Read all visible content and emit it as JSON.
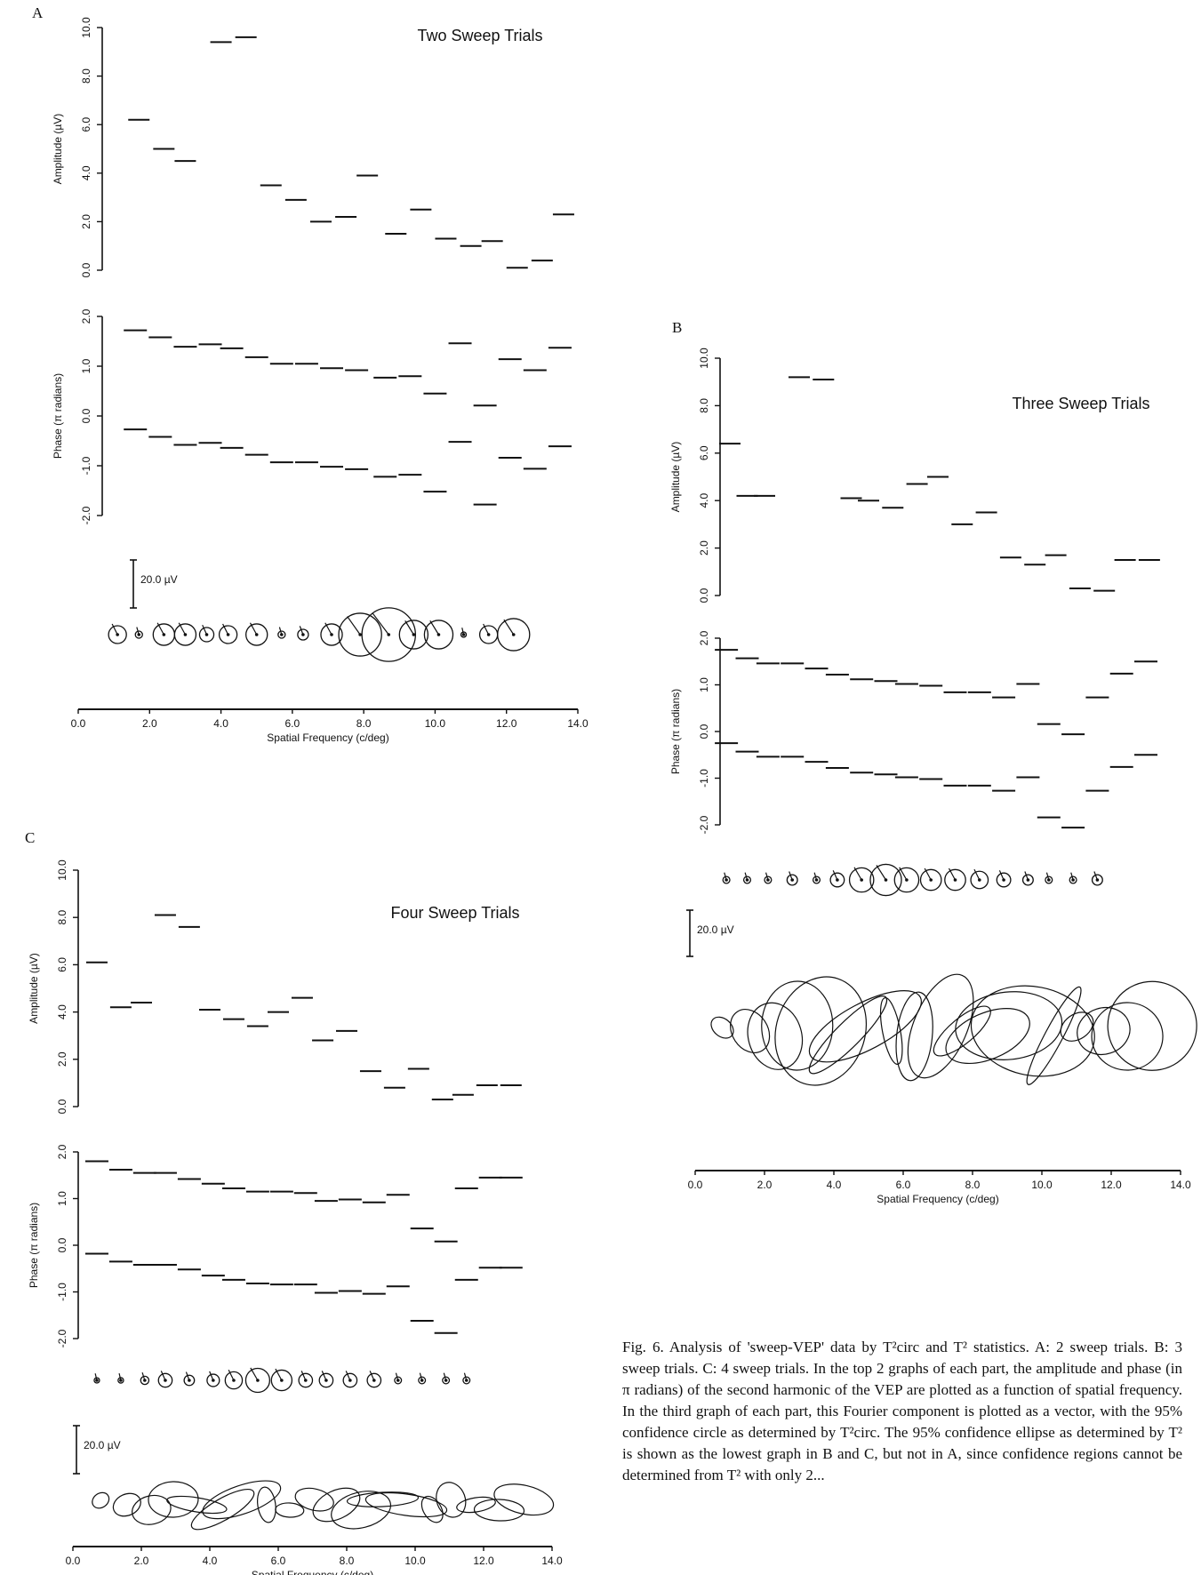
{
  "panels": [
    {
      "id": "A",
      "letter": "A",
      "title": "Two Sweep Trials",
      "amplitude_label": "Amplitude (µV)",
      "amplitude_ticks": [
        "0.0",
        "2.0",
        "4.0",
        "6.0",
        "8.0",
        "10.0"
      ],
      "phase_label": "Phase (π radians)",
      "phase_ticks": [
        "-2.0",
        "-1.0",
        "0.0",
        "1.0",
        "2.0"
      ],
      "scale_bar_label": "20.0 µV",
      "x_ticks": [
        "0.0",
        "2.0",
        "4.0",
        "6.0",
        "8.0",
        "10.0",
        "12.0",
        "14.0"
      ],
      "x_label": "Spatial Frequency (c/deg)"
    },
    {
      "id": "B",
      "letter": "B",
      "title": "Three Sweep Trials",
      "amplitude_label": "Amplitude (µV)",
      "amplitude_ticks": [
        "0.0",
        "2.0",
        "4.0",
        "6.0",
        "8.0",
        "10.0"
      ],
      "phase_label": "Phase (π radians)",
      "phase_ticks": [
        "-2.0",
        "-1.0",
        "0.0",
        "1.0",
        "2.0"
      ],
      "scale_bar_label": "20.0 µV",
      "x_ticks": [
        "0.0",
        "2.0",
        "4.0",
        "6.0",
        "8.0",
        "10.0",
        "12.0",
        "14.0"
      ],
      "x_label": "Spatial Frequency (c/deg)"
    },
    {
      "id": "C",
      "letter": "C",
      "title": "Four Sweep Trials",
      "amplitude_label": "Amplitude (µV)",
      "amplitude_ticks": [
        "0.0",
        "2.0",
        "4.0",
        "6.0",
        "8.0",
        "10.0"
      ],
      "phase_label": "Phase (π radians)",
      "phase_ticks": [
        "-2.0",
        "-1.0",
        "0.0",
        "1.0",
        "2.0"
      ],
      "scale_bar_label": "20.0 µV",
      "x_ticks": [
        "0.0",
        "2.0",
        "4.0",
        "6.0",
        "8.0",
        "10.0",
        "12.0",
        "14.0"
      ],
      "x_label": "Spatial Frequency (c/deg)"
    }
  ],
  "caption": "Fig. 6. Analysis of 'sweep-VEP' data by T²circ and T² statistics. A: 2 sweep trials. B: 3 sweep trials. C: 4 sweep trials. In the top 2 graphs of each part, the amplitude and phase (in π radians) of the second harmonic of the VEP are plotted as a function of spatial frequency. In the third graph of each part, this Fourier component is plotted as a vector, with the 95% confidence circle as determined by T²circ. The 95% confidence ellipse as determined by T² is shown as the lowest graph in B and C, but not in A, since confidence regions cannot be determined from T² with only 2...",
  "chart_data": [
    {
      "panel": "A",
      "type": "line",
      "title": "Two Sweep Trials",
      "x_label": "Spatial Frequency (c/deg)",
      "xlim": [
        0,
        14
      ],
      "amplitude": {
        "ylabel": "Amplitude (µV)",
        "ylim": [
          0,
          10
        ],
        "x": [
          1.7,
          2.4,
          3.0,
          4.0,
          4.7,
          5.4,
          6.1,
          6.8,
          7.5,
          8.1,
          8.9,
          9.6,
          10.3,
          11.0,
          11.6,
          12.3,
          13.0,
          13.6
        ],
        "y": [
          6.2,
          5.0,
          4.5,
          9.4,
          9.6,
          3.5,
          2.9,
          2.0,
          2.2,
          3.9,
          1.5,
          2.5,
          1.3,
          1.0,
          1.2,
          0.1,
          0.4,
          2.3
        ]
      },
      "phase": {
        "ylabel": "Phase (π radians)",
        "ylim": [
          -2,
          2
        ],
        "upper": {
          "x": [
            1.6,
            2.3,
            3.0,
            3.7,
            4.3,
            5.0,
            5.7,
            6.4,
            7.1,
            7.8,
            8.6,
            9.3,
            10.0,
            10.7,
            11.4,
            12.1,
            12.8,
            13.5
          ],
          "y": [
            1.72,
            1.58,
            1.39,
            1.44,
            1.36,
            1.18,
            1.05,
            1.05,
            0.96,
            0.92,
            0.77,
            0.8,
            0.45,
            1.46,
            0.21,
            1.14,
            0.92,
            1.37
          ]
        },
        "lower": {
          "x": [
            1.6,
            2.3,
            3.0,
            3.7,
            4.3,
            5.0,
            5.7,
            6.4,
            7.1,
            7.8,
            8.6,
            9.3,
            10.0,
            10.7,
            11.4,
            12.1,
            12.8,
            13.5
          ],
          "y": [
            -0.27,
            -0.42,
            -0.58,
            -0.54,
            -0.64,
            -0.78,
            -0.93,
            -0.93,
            -1.02,
            -1.07,
            -1.22,
            -1.18,
            -1.52,
            -0.52,
            -1.78,
            -0.84,
            -1.06,
            -0.61
          ]
        }
      },
      "confidence_circles": {
        "x": [
          1.1,
          1.7,
          2.4,
          3.0,
          3.6,
          4.2,
          5.0,
          5.7,
          6.3,
          7.1,
          7.9,
          8.7,
          9.4,
          10.1,
          10.8,
          11.5,
          12.2
        ],
        "radius": [
          0.25,
          0.1,
          0.3,
          0.3,
          0.2,
          0.25,
          0.3,
          0.1,
          0.15,
          0.3,
          0.6,
          0.75,
          0.4,
          0.4,
          0.05,
          0.25,
          0.45
        ]
      }
    },
    {
      "panel": "B",
      "type": "line",
      "title": "Three Sweep Trials",
      "x_label": "Spatial Frequency (c/deg)",
      "xlim": [
        0,
        14
      ],
      "amplitude": {
        "ylabel": "Amplitude (µV)",
        "ylim": [
          0,
          10
        ],
        "x": [
          1.0,
          1.5,
          2.0,
          3.0,
          3.7,
          4.5,
          5.0,
          5.7,
          6.4,
          7.0,
          7.7,
          8.4,
          9.1,
          9.8,
          10.4,
          11.1,
          11.8,
          12.4,
          13.1
        ],
        "y": [
          6.4,
          4.2,
          4.2,
          9.2,
          9.1,
          4.1,
          4.0,
          3.7,
          4.7,
          5.0,
          3.0,
          3.5,
          1.6,
          1.3,
          1.7,
          0.3,
          0.2,
          1.5,
          1.5
        ]
      },
      "phase": {
        "ylabel": "Phase (π radians)",
        "ylim": [
          -2,
          2
        ],
        "upper": {
          "x": [
            0.9,
            1.5,
            2.1,
            2.8,
            3.5,
            4.1,
            4.8,
            5.5,
            6.1,
            6.8,
            7.5,
            8.2,
            8.9,
            9.6,
            10.2,
            10.9,
            11.6,
            12.3,
            13.0
          ],
          "y": [
            1.75,
            1.57,
            1.46,
            1.46,
            1.35,
            1.22,
            1.12,
            1.08,
            1.02,
            0.98,
            0.84,
            0.84,
            0.73,
            1.02,
            0.16,
            -0.06,
            0.73,
            1.24,
            1.5
          ]
        },
        "lower": {
          "x": [
            0.9,
            1.5,
            2.1,
            2.8,
            3.5,
            4.1,
            4.8,
            5.5,
            6.1,
            6.8,
            7.5,
            8.2,
            8.9,
            9.6,
            10.2,
            10.9,
            11.6,
            12.3,
            13.0
          ],
          "y": [
            -0.25,
            -0.43,
            -0.54,
            -0.54,
            -0.65,
            -0.78,
            -0.88,
            -0.92,
            -0.98,
            -1.02,
            -1.16,
            -1.16,
            -1.27,
            -0.98,
            -1.84,
            -2.06,
            -1.27,
            -0.76,
            -0.5
          ]
        }
      },
      "confidence_circles": {
        "x": [
          0.9,
          1.5,
          2.1,
          2.8,
          3.5,
          4.1,
          4.8,
          5.5,
          6.1,
          6.8,
          7.5,
          8.2,
          8.9,
          9.6,
          10.2,
          10.9,
          11.6
        ],
        "radius": [
          0.1,
          0.1,
          0.1,
          0.15,
          0.1,
          0.2,
          0.35,
          0.45,
          0.35,
          0.3,
          0.3,
          0.25,
          0.2,
          0.15,
          0.1,
          0.1,
          0.15
        ]
      },
      "confidence_ellipses": {
        "count": 19
      }
    },
    {
      "panel": "C",
      "type": "line",
      "title": "Four Sweep Trials",
      "x_label": "Spatial Frequency (c/deg)",
      "xlim": [
        0,
        14
      ],
      "amplitude": {
        "ylabel": "Amplitude (µV)",
        "ylim": [
          0,
          10
        ],
        "x": [
          0.7,
          1.4,
          2.0,
          2.7,
          3.4,
          4.0,
          4.7,
          5.4,
          6.0,
          6.7,
          7.3,
          8.0,
          8.7,
          9.4,
          10.1,
          10.8,
          11.4,
          12.1,
          12.8
        ],
        "y": [
          6.1,
          4.2,
          4.4,
          8.1,
          7.6,
          4.1,
          3.7,
          3.4,
          4.0,
          4.6,
          2.8,
          3.2,
          1.5,
          0.8,
          1.6,
          0.3,
          0.5,
          0.9,
          0.9
        ]
      },
      "phase": {
        "ylabel": "Phase (π radians)",
        "ylim": [
          -2,
          2
        ],
        "upper": {
          "x": [
            0.7,
            1.4,
            2.1,
            2.7,
            3.4,
            4.1,
            4.7,
            5.4,
            6.1,
            6.8,
            7.4,
            8.1,
            8.8,
            9.5,
            10.2,
            10.9,
            11.5,
            12.2,
            12.8
          ],
          "y": [
            1.8,
            1.62,
            1.55,
            1.55,
            1.42,
            1.32,
            1.22,
            1.15,
            1.15,
            1.12,
            0.95,
            0.98,
            0.92,
            1.08,
            0.36,
            0.08,
            1.22,
            1.45,
            1.45
          ]
        },
        "lower": {
          "x": [
            0.7,
            1.4,
            2.1,
            2.7,
            3.4,
            4.1,
            4.7,
            5.4,
            6.1,
            6.8,
            7.4,
            8.1,
            8.8,
            9.5,
            10.2,
            10.9,
            11.5,
            12.2,
            12.8
          ],
          "y": [
            -0.18,
            -0.35,
            -0.42,
            -0.42,
            -0.52,
            -0.65,
            -0.74,
            -0.82,
            -0.84,
            -0.84,
            -1.02,
            -0.98,
            -1.04,
            -0.88,
            -1.62,
            -1.88,
            -0.74,
            -0.48,
            -0.48
          ]
        }
      },
      "confidence_circles": {
        "x": [
          0.7,
          1.4,
          2.1,
          2.7,
          3.4,
          4.1,
          4.7,
          5.4,
          6.1,
          6.8,
          7.4,
          8.1,
          8.8,
          9.5,
          10.2,
          10.9,
          11.5
        ],
        "radius": [
          0.05,
          0.08,
          0.12,
          0.2,
          0.15,
          0.18,
          0.25,
          0.35,
          0.3,
          0.2,
          0.2,
          0.2,
          0.2,
          0.1,
          0.1,
          0.1,
          0.1
        ]
      },
      "confidence_ellipses": {
        "count": 19
      }
    }
  ]
}
